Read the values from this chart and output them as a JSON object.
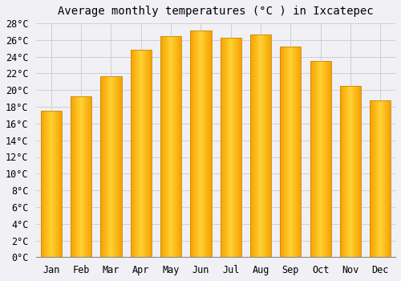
{
  "title": "Average monthly temperatures (°C ) in Ixcatepec",
  "months": [
    "Jan",
    "Feb",
    "Mar",
    "Apr",
    "May",
    "Jun",
    "Jul",
    "Aug",
    "Sep",
    "Oct",
    "Nov",
    "Dec"
  ],
  "temperatures": [
    17.5,
    19.3,
    21.7,
    24.8,
    26.5,
    27.1,
    26.3,
    26.7,
    25.2,
    23.5,
    20.5,
    18.8
  ],
  "bar_color_left": "#F5A800",
  "bar_color_center": "#FFD966",
  "bar_color_right": "#F5A800",
  "bar_edge_color": "#CC8800",
  "ylim": [
    0,
    28
  ],
  "ytick_step": 2,
  "background_color": "#f0f0f5",
  "plot_bg_color": "#f0f0f5",
  "grid_color": "#cccccc",
  "title_fontsize": 10,
  "tick_fontsize": 8.5,
  "bar_width": 0.7
}
